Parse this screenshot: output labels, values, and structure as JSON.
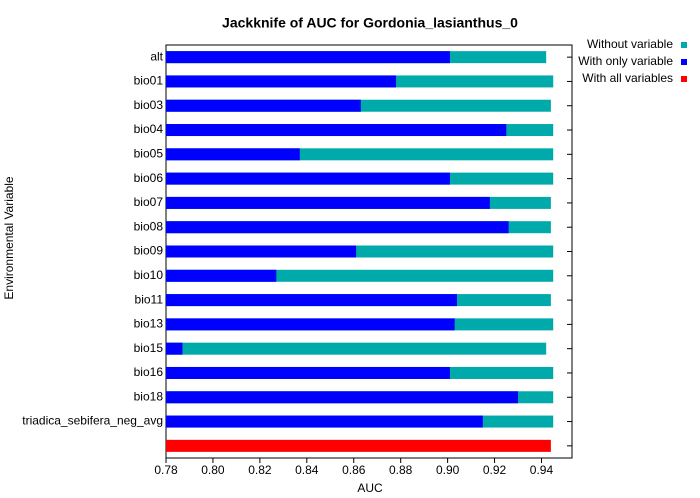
{
  "chart_data": {
    "type": "bar",
    "orientation": "horizontal",
    "title": "Jackknife of AUC for Gordonia_lasianthus_0",
    "x_label": "AUC",
    "y_label": "Environmental Variable",
    "categories": [
      "alt",
      "bio01",
      "bio03",
      "bio04",
      "bio05",
      "bio06",
      "bio07",
      "bio08",
      "bio09",
      "bio10",
      "bio11",
      "bio13",
      "bio15",
      "bio16",
      "bio18",
      "triadica_sebifera_neg_avg",
      null
    ],
    "series": [
      {
        "name": "Without variable",
        "color": "#00aaaa",
        "values": [
          0.942,
          0.945,
          0.944,
          0.945,
          0.945,
          0.945,
          0.944,
          0.944,
          0.945,
          0.945,
          0.944,
          0.945,
          0.942,
          0.945,
          0.945,
          0.945,
          null
        ]
      },
      {
        "name": "With only variable",
        "color": "#0000ff",
        "values": [
          0.901,
          0.878,
          0.863,
          0.925,
          0.837,
          0.901,
          0.918,
          0.926,
          0.861,
          0.827,
          0.904,
          0.903,
          0.787,
          0.901,
          0.93,
          0.915,
          null
        ]
      },
      {
        "name": "With all variables",
        "color": "#ff0000",
        "values": [
          null,
          null,
          null,
          null,
          null,
          null,
          null,
          null,
          null,
          null,
          null,
          null,
          null,
          null,
          null,
          null,
          0.944
        ]
      }
    ],
    "xlim": [
      0.78,
      0.953
    ],
    "xticks": [
      0.78,
      {
        "value": 0.8,
        "label": "0.80"
      },
      0.82,
      0.84,
      0.86,
      0.88,
      {
        "value": 0.9,
        "label": "0.90"
      },
      0.92,
      0.94
    ],
    "legend": "top-right"
  }
}
